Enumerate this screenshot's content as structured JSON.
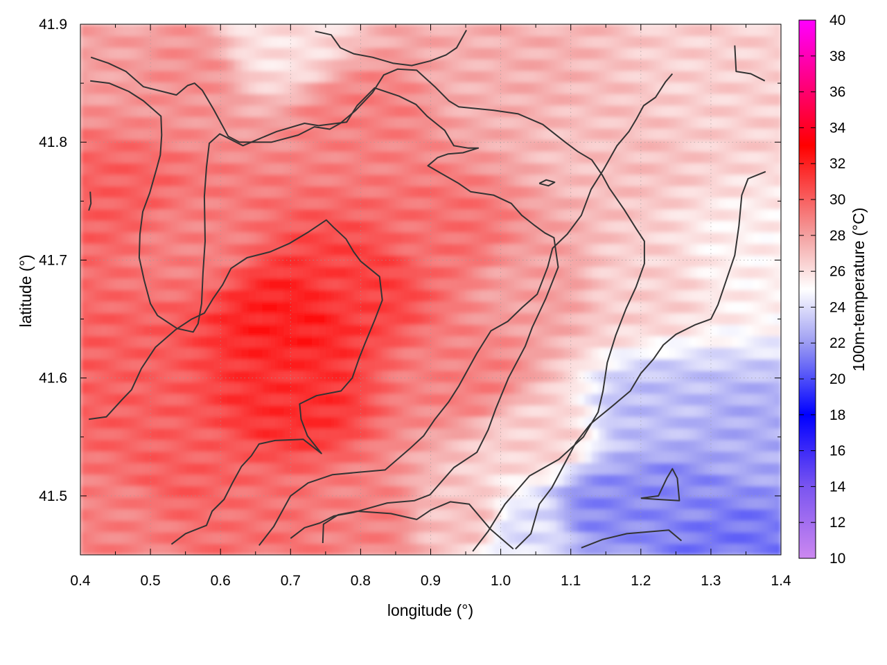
{
  "chart_data": {
    "type": "heatmap",
    "title": "",
    "xlabel": "longitude (°)",
    "ylabel": "latitude (°)",
    "colorbar_label": "100m-temperature (°C)",
    "xlim": [
      0.4,
      1.4
    ],
    "ylim": [
      41.45,
      41.9
    ],
    "zlim": [
      10,
      40
    ],
    "x_ticks": [
      0.4,
      0.5,
      0.6,
      0.7,
      0.8,
      0.9,
      1.0,
      1.1,
      1.2,
      1.3,
      1.4
    ],
    "x_tick_labels": [
      "0.4",
      "0.5",
      "0.6",
      "0.7",
      "0.8",
      "0.9",
      "1.0",
      "1.1",
      "1.2",
      "1.3",
      "1.4"
    ],
    "y_ticks": [
      41.5,
      41.6,
      41.7,
      41.8,
      41.9
    ],
    "y_tick_labels": [
      "41.5",
      "41.6",
      "41.7",
      "41.8",
      "41.9"
    ],
    "colorbar_ticks": [
      10,
      12,
      14,
      16,
      18,
      20,
      22,
      24,
      26,
      28,
      30,
      32,
      34,
      36,
      38,
      40
    ],
    "colorbar_tick_labels": [
      "10",
      "12",
      "14",
      "16",
      "18",
      "20",
      "22",
      "24",
      "26",
      "28",
      "30",
      "32",
      "34",
      "36",
      "38",
      "40"
    ],
    "grid": true,
    "colormap": [
      {
        "value": 10,
        "color": "#cc88f0"
      },
      {
        "value": 14,
        "color": "#7a55f0"
      },
      {
        "value": 18,
        "color": "#0000ff"
      },
      {
        "value": 22,
        "color": "#9c9cf2"
      },
      {
        "value": 25,
        "color": "#ffffff"
      },
      {
        "value": 28,
        "color": "#f3a0a0"
      },
      {
        "value": 33,
        "color": "#ff0000"
      },
      {
        "value": 40,
        "color": "#ff00ff"
      }
    ],
    "field_samples": [
      {
        "lon": 0.45,
        "lat": 41.88,
        "temp": 28.0
      },
      {
        "lon": 0.45,
        "lat": 41.75,
        "temp": 30.0
      },
      {
        "lon": 0.45,
        "lat": 41.6,
        "temp": 30.0
      },
      {
        "lon": 0.45,
        "lat": 41.48,
        "temp": 29.0
      },
      {
        "lon": 0.55,
        "lat": 41.86,
        "temp": 28.5
      },
      {
        "lon": 0.55,
        "lat": 41.72,
        "temp": 29.0
      },
      {
        "lon": 0.55,
        "lat": 41.52,
        "temp": 30.0
      },
      {
        "lon": 0.68,
        "lat": 41.88,
        "temp": 26.0
      },
      {
        "lon": 0.7,
        "lat": 41.65,
        "temp": 32.0
      },
      {
        "lon": 0.7,
        "lat": 41.58,
        "temp": 31.5
      },
      {
        "lon": 0.65,
        "lat": 41.48,
        "temp": 29.5
      },
      {
        "lon": 0.8,
        "lat": 41.82,
        "temp": 29.0
      },
      {
        "lon": 0.8,
        "lat": 41.68,
        "temp": 31.0
      },
      {
        "lon": 0.8,
        "lat": 41.48,
        "temp": 29.0
      },
      {
        "lon": 0.92,
        "lat": 41.72,
        "temp": 29.5
      },
      {
        "lon": 0.95,
        "lat": 41.6,
        "temp": 29.0
      },
      {
        "lon": 0.95,
        "lat": 41.48,
        "temp": 27.0
      },
      {
        "lon": 1.0,
        "lat": 41.85,
        "temp": 27.5
      },
      {
        "lon": 1.05,
        "lat": 41.68,
        "temp": 28.0
      },
      {
        "lon": 1.05,
        "lat": 41.55,
        "temp": 26.5
      },
      {
        "lon": 1.03,
        "lat": 41.47,
        "temp": 24.0
      },
      {
        "lon": 1.15,
        "lat": 41.8,
        "temp": 27.0
      },
      {
        "lon": 1.2,
        "lat": 41.68,
        "temp": 26.5
      },
      {
        "lon": 1.3,
        "lat": 41.85,
        "temp": 26.5
      },
      {
        "lon": 1.35,
        "lat": 41.7,
        "temp": 25.5
      },
      {
        "lon": 1.22,
        "lat": 41.57,
        "temp": 23.0
      },
      {
        "lon": 1.15,
        "lat": 41.49,
        "temp": 21.5
      },
      {
        "lon": 1.25,
        "lat": 41.5,
        "temp": 21.5
      },
      {
        "lon": 1.35,
        "lat": 41.55,
        "temp": 22.5
      },
      {
        "lon": 1.32,
        "lat": 41.46,
        "temp": 21.0
      }
    ],
    "contours": [
      [
        [
          0.415,
          41.872
        ],
        [
          0.44,
          41.867
        ],
        [
          0.465,
          41.86
        ],
        [
          0.49,
          41.847
        ],
        [
          0.537,
          41.84
        ],
        [
          0.553,
          41.848
        ],
        [
          0.563,
          41.85
        ],
        [
          0.574,
          41.844
        ],
        [
          0.59,
          41.828
        ],
        [
          0.611,
          41.805
        ],
        [
          0.627,
          41.8
        ],
        [
          0.673,
          41.8
        ],
        [
          0.711,
          41.806
        ],
        [
          0.734,
          41.813
        ],
        [
          0.756,
          41.811
        ],
        [
          0.771,
          41.816
        ],
        [
          0.793,
          41.827
        ],
        [
          0.817,
          41.842
        ],
        [
          0.833,
          41.857
        ],
        [
          0.853,
          41.862
        ],
        [
          0.88,
          41.861
        ],
        [
          0.906,
          41.847
        ],
        [
          0.926,
          41.835
        ],
        [
          0.94,
          41.83
        ],
        [
          0.99,
          41.827
        ],
        [
          1.025,
          41.824
        ],
        [
          1.06,
          41.815
        ],
        [
          1.092,
          41.8
        ],
        [
          1.11,
          41.792
        ],
        [
          1.13,
          41.785
        ],
        [
          1.145,
          41.772
        ],
        [
          1.155,
          41.761
        ],
        [
          1.176,
          41.743
        ],
        [
          1.194,
          41.726
        ],
        [
          1.205,
          41.716
        ],
        [
          1.205,
          41.697
        ],
        [
          1.193,
          41.677
        ],
        [
          1.179,
          41.659
        ],
        [
          1.164,
          41.636
        ],
        [
          1.152,
          41.613
        ],
        [
          1.146,
          41.589
        ],
        [
          1.139,
          41.571
        ],
        [
          1.118,
          41.55
        ],
        [
          1.083,
          41.531
        ],
        [
          1.041,
          41.517
        ],
        [
          1.006,
          41.493
        ],
        [
          0.982,
          41.47
        ],
        [
          0.96,
          41.453
        ]
      ],
      [
        [
          0.414,
          41.852
        ],
        [
          0.441,
          41.85
        ],
        [
          0.469,
          41.843
        ],
        [
          0.49,
          41.835
        ],
        [
          0.515,
          41.822
        ],
        [
          0.516,
          41.806
        ],
        [
          0.514,
          41.789
        ],
        [
          0.509,
          41.778
        ],
        [
          0.499,
          41.757
        ],
        [
          0.489,
          41.741
        ],
        [
          0.485,
          41.722
        ],
        [
          0.484,
          41.702
        ],
        [
          0.491,
          41.683
        ],
        [
          0.5,
          41.663
        ],
        [
          0.51,
          41.653
        ],
        [
          0.538,
          41.642
        ],
        [
          0.561,
          41.639
        ],
        [
          0.568,
          41.646
        ],
        [
          0.573,
          41.663
        ],
        [
          0.575,
          41.689
        ],
        [
          0.578,
          41.716
        ],
        [
          0.577,
          41.754
        ],
        [
          0.58,
          41.779
        ],
        [
          0.584,
          41.799
        ],
        [
          0.599,
          41.807
        ],
        [
          0.632,
          41.797
        ],
        [
          0.68,
          41.809
        ],
        [
          0.72,
          41.816
        ],
        [
          0.74,
          41.814
        ],
        [
          0.78,
          41.817
        ],
        [
          0.795,
          41.831
        ],
        [
          0.82,
          41.846
        ],
        [
          0.855,
          41.839
        ],
        [
          0.879,
          41.832
        ],
        [
          0.895,
          41.822
        ],
        [
          0.92,
          41.81
        ],
        [
          0.933,
          41.797
        ],
        [
          0.953,
          41.795
        ],
        [
          0.968,
          41.795
        ],
        [
          0.946,
          41.791
        ],
        [
          0.925,
          41.79
        ],
        [
          0.91,
          41.787
        ],
        [
          0.896,
          41.78
        ],
        [
          0.94,
          41.765
        ],
        [
          0.957,
          41.758
        ],
        [
          0.99,
          41.755
        ],
        [
          1.015,
          41.748
        ],
        [
          1.03,
          41.738
        ],
        [
          1.047,
          41.73
        ],
        [
          1.063,
          41.723
        ],
        [
          1.076,
          41.719
        ],
        [
          1.082,
          41.694
        ],
        [
          1.064,
          41.667
        ],
        [
          1.045,
          41.643
        ],
        [
          1.035,
          41.627
        ],
        [
          1.011,
          41.6
        ],
        [
          0.993,
          41.574
        ],
        [
          0.982,
          41.556
        ],
        [
          0.966,
          41.537
        ],
        [
          0.933,
          41.524
        ],
        [
          0.899,
          41.501
        ],
        [
          0.877,
          41.496
        ],
        [
          0.838,
          41.494
        ],
        [
          0.79,
          41.486
        ],
        [
          0.762,
          41.483
        ],
        [
          0.742,
          41.477
        ],
        [
          0.72,
          41.473
        ],
        [
          0.7,
          41.464
        ]
      ],
      [
        [
          0.412,
          41.565
        ],
        [
          0.437,
          41.567
        ],
        [
          0.46,
          41.582
        ],
        [
          0.473,
          41.59
        ],
        [
          0.487,
          41.608
        ],
        [
          0.507,
          41.626
        ],
        [
          0.536,
          41.641
        ],
        [
          0.559,
          41.65
        ],
        [
          0.577,
          41.655
        ],
        [
          0.589,
          41.667
        ],
        [
          0.603,
          41.679
        ],
        [
          0.615,
          41.693
        ],
        [
          0.638,
          41.702
        ],
        [
          0.671,
          41.707
        ],
        [
          0.698,
          41.714
        ],
        [
          0.726,
          41.724
        ],
        [
          0.751,
          41.734
        ],
        [
          0.761,
          41.728
        ],
        [
          0.779,
          41.718
        ],
        [
          0.79,
          41.707
        ],
        [
          0.8,
          41.699
        ],
        [
          0.827,
          41.686
        ],
        [
          0.831,
          41.666
        ],
        [
          0.82,
          41.649
        ],
        [
          0.806,
          41.629
        ],
        [
          0.798,
          41.617
        ],
        [
          0.788,
          41.6
        ],
        [
          0.772,
          41.589
        ],
        [
          0.737,
          41.585
        ],
        [
          0.713,
          41.578
        ],
        [
          0.715,
          41.565
        ],
        [
          0.724,
          41.551
        ],
        [
          0.744,
          41.536
        ],
        [
          0.718,
          41.548
        ],
        [
          0.678,
          41.547
        ],
        [
          0.655,
          41.544
        ],
        [
          0.644,
          41.534
        ],
        [
          0.63,
          41.525
        ],
        [
          0.617,
          41.511
        ],
        [
          0.605,
          41.497
        ],
        [
          0.588,
          41.487
        ],
        [
          0.58,
          41.475
        ],
        [
          0.55,
          41.468
        ],
        [
          0.53,
          41.459
        ]
      ],
      [
        [
          0.655,
          41.458
        ],
        [
          0.676,
          41.474
        ],
        [
          0.7,
          41.5
        ],
        [
          0.725,
          41.511
        ],
        [
          0.76,
          41.518
        ],
        [
          0.797,
          41.52
        ],
        [
          0.835,
          41.522
        ],
        [
          0.87,
          41.54
        ],
        [
          0.89,
          41.551
        ],
        [
          0.906,
          41.565
        ],
        [
          0.926,
          41.58
        ],
        [
          0.94,
          41.593
        ],
        [
          0.966,
          41.621
        ],
        [
          0.986,
          41.64
        ],
        [
          1.01,
          41.648
        ],
        [
          1.031,
          41.66
        ],
        [
          1.052,
          41.671
        ],
        [
          1.067,
          41.694
        ],
        [
          1.074,
          41.71
        ],
        [
          1.095,
          41.722
        ],
        [
          1.115,
          41.738
        ],
        [
          1.129,
          41.76
        ],
        [
          1.147,
          41.777
        ],
        [
          1.166,
          41.797
        ],
        [
          1.183,
          41.809
        ],
        [
          1.194,
          41.82
        ],
        [
          1.204,
          41.831
        ],
        [
          1.221,
          41.838
        ],
        [
          1.235,
          41.851
        ],
        [
          1.245,
          41.858
        ]
      ],
      [
        [
          0.746,
          41.46
        ],
        [
          0.747,
          41.476
        ],
        [
          0.768,
          41.484
        ],
        [
          0.795,
          41.487
        ],
        [
          0.843,
          41.485
        ],
        [
          0.88,
          41.48
        ],
        [
          0.9,
          41.488
        ],
        [
          0.928,
          41.495
        ],
        [
          0.955,
          41.493
        ],
        [
          0.985,
          41.472
        ],
        [
          1.018,
          41.455
        ]
      ],
      [
        [
          1.021,
          41.455
        ],
        [
          1.043,
          41.468
        ],
        [
          1.055,
          41.493
        ],
        [
          1.073,
          41.507
        ],
        [
          1.09,
          41.526
        ],
        [
          1.107,
          41.545
        ],
        [
          1.128,
          41.561
        ],
        [
          1.157,
          41.575
        ],
        [
          1.185,
          41.589
        ],
        [
          1.2,
          41.604
        ],
        [
          1.218,
          41.616
        ],
        [
          1.232,
          41.628
        ],
        [
          1.25,
          41.637
        ],
        [
          1.277,
          41.645
        ],
        [
          1.3,
          41.65
        ],
        [
          1.31,
          41.662
        ],
        [
          1.322,
          41.683
        ],
        [
          1.334,
          41.704
        ],
        [
          1.34,
          41.729
        ],
        [
          1.344,
          41.755
        ],
        [
          1.353,
          41.769
        ],
        [
          1.378,
          41.775
        ]
      ],
      [
        [
          1.115,
          41.456
        ],
        [
          1.145,
          41.463
        ],
        [
          1.18,
          41.468
        ],
        [
          1.24,
          41.471
        ],
        [
          1.258,
          41.462
        ]
      ],
      [
        [
          1.2,
          41.498
        ],
        [
          1.225,
          41.497
        ],
        [
          1.255,
          41.496
        ],
        [
          1.252,
          41.515
        ],
        [
          1.245,
          41.523
        ],
        [
          1.237,
          41.515
        ],
        [
          1.225,
          41.5
        ],
        [
          1.2,
          41.498
        ]
      ],
      [
        [
          0.735,
          41.894
        ],
        [
          0.758,
          41.891
        ],
        [
          0.771,
          41.88
        ],
        [
          0.79,
          41.875
        ],
        [
          0.817,
          41.872
        ],
        [
          0.846,
          41.867
        ],
        [
          0.873,
          41.865
        ],
        [
          0.9,
          41.869
        ],
        [
          0.922,
          41.874
        ],
        [
          0.937,
          41.88
        ],
        [
          0.951,
          41.895
        ]
      ],
      [
        [
          1.055,
          41.765
        ],
        [
          1.065,
          41.768
        ],
        [
          1.077,
          41.766
        ],
        [
          1.068,
          41.763
        ],
        [
          1.055,
          41.765
        ]
      ],
      [
        [
          1.334,
          41.882
        ],
        [
          1.336,
          41.86
        ],
        [
          1.357,
          41.858
        ],
        [
          1.377,
          41.852
        ]
      ],
      [
        [
          0.414,
          41.758
        ],
        [
          0.415,
          41.748
        ],
        [
          0.412,
          41.742
        ]
      ]
    ]
  }
}
